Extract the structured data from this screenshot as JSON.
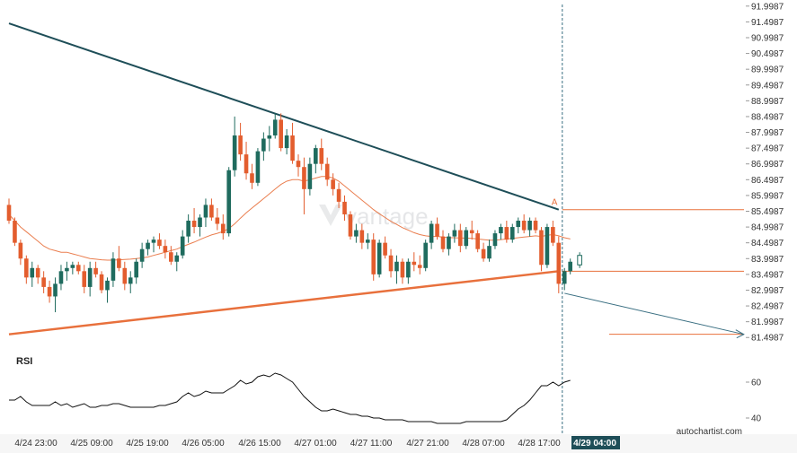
{
  "colors": {
    "bull": "#1f6b5e",
    "bear": "#e35d2e",
    "upper_trend": "#1e4e58",
    "lower_trend": "#e8703c",
    "ma": "#e8703c",
    "rsi_line": "#111111",
    "vline": "#3a6f82",
    "projection": "#3a6f82",
    "xaxis_highlight": "#1e4e58"
  },
  "chart_data": {
    "type": "candlestick",
    "yticks": [
      "91.9987",
      "91.4987",
      "90.9987",
      "90.4987",
      "89.9987",
      "89.4987",
      "88.9987",
      "88.4987",
      "87.9987",
      "87.4987",
      "86.9987",
      "86.4987",
      "85.9987",
      "85.4987",
      "84.9987",
      "84.4987",
      "83.9987",
      "83.4987",
      "82.9987",
      "82.4987",
      "81.9987",
      "81.4987"
    ],
    "ylim": [
      81.25,
      92.05
    ],
    "xticks": [
      "4/24 23:00",
      "4/25 09:00",
      "4/25 19:00",
      "4/26 05:00",
      "4/26 15:00",
      "4/27 01:00",
      "4/27 11:00",
      "4/27 21:00",
      "4/28 07:00",
      "4/28 17:00",
      "4/29 04:00"
    ],
    "highlight_xtick": "4/29 04:00",
    "candles": [
      [
        85.7,
        85.9,
        85.1,
        85.2
      ],
      [
        85.2,
        85.3,
        84.4,
        84.5
      ],
      [
        84.5,
        84.6,
        83.8,
        84.0
      ],
      [
        84.0,
        84.1,
        83.2,
        83.4
      ],
      [
        83.4,
        83.9,
        83.1,
        83.7
      ],
      [
        83.7,
        83.8,
        83.2,
        83.4
      ],
      [
        83.4,
        83.6,
        82.9,
        83.1
      ],
      [
        83.1,
        83.3,
        82.6,
        82.8
      ],
      [
        82.8,
        83.4,
        82.3,
        83.2
      ],
      [
        83.2,
        83.8,
        83.0,
        83.6
      ],
      [
        83.6,
        83.9,
        83.3,
        83.7
      ],
      [
        83.7,
        83.9,
        83.5,
        83.8
      ],
      [
        83.8,
        83.9,
        83.5,
        83.6
      ],
      [
        83.6,
        83.8,
        82.9,
        83.1
      ],
      [
        83.1,
        83.9,
        82.8,
        83.7
      ],
      [
        83.7,
        83.9,
        83.4,
        83.5
      ],
      [
        83.5,
        83.6,
        82.9,
        83.0
      ],
      [
        83.0,
        83.4,
        82.6,
        83.3
      ],
      [
        83.3,
        84.2,
        83.1,
        84.0
      ],
      [
        84.0,
        84.4,
        83.6,
        83.7
      ],
      [
        83.7,
        83.9,
        83.0,
        83.2
      ],
      [
        83.2,
        83.6,
        82.9,
        83.4
      ],
      [
        83.4,
        84.0,
        83.2,
        83.9
      ],
      [
        83.9,
        84.5,
        83.7,
        84.3
      ],
      [
        84.3,
        84.6,
        84.1,
        84.5
      ],
      [
        84.5,
        84.7,
        84.2,
        84.6
      ],
      [
        84.6,
        84.8,
        84.3,
        84.4
      ],
      [
        84.4,
        84.6,
        84.0,
        84.2
      ],
      [
        84.2,
        84.4,
        83.8,
        83.9
      ],
      [
        83.9,
        84.2,
        83.6,
        84.1
      ],
      [
        84.1,
        84.9,
        84.0,
        84.7
      ],
      [
        84.7,
        85.4,
        84.5,
        85.2
      ],
      [
        85.2,
        85.6,
        84.8,
        85.0
      ],
      [
        85.0,
        85.4,
        84.7,
        85.3
      ],
      [
        85.3,
        85.9,
        85.0,
        85.7
      ],
      [
        85.7,
        85.9,
        85.2,
        85.3
      ],
      [
        85.3,
        85.6,
        84.9,
        85.1
      ],
      [
        85.1,
        85.4,
        84.6,
        84.8
      ],
      [
        84.8,
        86.9,
        84.7,
        86.8
      ],
      [
        86.8,
        88.5,
        86.6,
        87.9
      ],
      [
        87.9,
        88.3,
        87.1,
        87.3
      ],
      [
        87.3,
        87.7,
        86.5,
        86.7
      ],
      [
        86.7,
        87.0,
        86.2,
        86.4
      ],
      [
        86.4,
        87.5,
        86.3,
        87.4
      ],
      [
        87.4,
        88.0,
        87.1,
        87.8
      ],
      [
        87.8,
        88.2,
        87.4,
        87.9
      ],
      [
        87.9,
        88.6,
        87.8,
        88.4
      ],
      [
        88.4,
        88.6,
        87.4,
        87.5
      ],
      [
        87.5,
        88.1,
        87.3,
        87.9
      ],
      [
        87.9,
        88.3,
        87.0,
        87.1
      ],
      [
        87.1,
        87.3,
        86.6,
        86.9
      ],
      [
        86.9,
        87.2,
        85.4,
        86.2
      ],
      [
        86.2,
        87.2,
        86.0,
        87.0
      ],
      [
        87.0,
        87.6,
        86.7,
        87.5
      ],
      [
        87.5,
        87.8,
        86.8,
        87.0
      ],
      [
        87.0,
        87.2,
        86.3,
        86.5
      ],
      [
        86.5,
        86.7,
        86.0,
        86.2
      ],
      [
        86.2,
        86.4,
        85.6,
        85.8
      ],
      [
        85.8,
        86.0,
        85.2,
        85.4
      ],
      [
        85.4,
        85.5,
        84.6,
        84.7
      ],
      [
        84.7,
        85.1,
        84.5,
        84.9
      ],
      [
        84.9,
        85.1,
        84.3,
        84.5
      ],
      [
        84.5,
        84.8,
        84.3,
        84.6
      ],
      [
        84.6,
        84.8,
        83.3,
        83.5
      ],
      [
        83.5,
        84.6,
        83.4,
        84.5
      ],
      [
        84.5,
        84.7,
        84.0,
        84.1
      ],
      [
        84.1,
        84.3,
        83.4,
        83.6
      ],
      [
        83.6,
        84.1,
        83.2,
        83.9
      ],
      [
        83.9,
        84.0,
        83.2,
        83.4
      ],
      [
        83.4,
        84.0,
        83.2,
        83.9
      ],
      [
        83.9,
        84.2,
        83.6,
        83.8
      ],
      [
        83.8,
        84.1,
        83.5,
        83.7
      ],
      [
        83.7,
        84.6,
        83.6,
        84.5
      ],
      [
        84.5,
        85.2,
        84.3,
        85.1
      ],
      [
        85.1,
        85.3,
        84.6,
        84.7
      ],
      [
        84.7,
        84.9,
        84.2,
        84.3
      ],
      [
        84.3,
        84.8,
        84.1,
        84.7
      ],
      [
        84.7,
        85.1,
        84.5,
        84.9
      ],
      [
        84.9,
        85.1,
        84.2,
        84.4
      ],
      [
        84.4,
        85.0,
        84.3,
        84.9
      ],
      [
        84.9,
        85.2,
        84.6,
        84.8
      ],
      [
        84.8,
        84.9,
        84.2,
        84.3
      ],
      [
        84.3,
        84.5,
        83.9,
        84.0
      ],
      [
        84.0,
        84.6,
        83.9,
        84.4
      ],
      [
        84.4,
        84.9,
        84.3,
        84.8
      ],
      [
        84.8,
        85.1,
        84.6,
        85.0
      ],
      [
        85.0,
        85.2,
        84.5,
        84.6
      ],
      [
        84.6,
        85.1,
        84.5,
        85.0
      ],
      [
        85.0,
        85.3,
        84.8,
        85.2
      ],
      [
        85.2,
        85.4,
        84.8,
        84.9
      ],
      [
        84.9,
        85.3,
        84.7,
        85.2
      ],
      [
        85.2,
        85.3,
        84.8,
        84.9
      ],
      [
        84.9,
        85.0,
        83.6,
        83.8
      ],
      [
        83.8,
        85.1,
        83.7,
        85.0
      ],
      [
        85.0,
        85.2,
        84.4,
        84.5
      ],
      [
        84.5,
        84.7,
        82.9,
        83.2
      ],
      [
        83.2,
        83.7,
        83.0,
        83.6
      ],
      [
        83.6,
        84.0,
        83.5,
        83.9
      ]
    ],
    "ma": [
      85.4,
      85.2,
      85.0,
      84.85,
      84.7,
      84.55,
      84.4,
      84.3,
      84.25,
      84.2,
      84.2,
      84.15,
      84.1,
      84.05,
      84.0,
      83.98,
      83.96,
      83.95,
      83.95,
      83.96,
      83.97,
      83.98,
      84.0,
      84.02,
      84.05,
      84.1,
      84.15,
      84.2,
      84.25,
      84.3,
      84.38,
      84.45,
      84.52,
      84.6,
      84.68,
      84.75,
      84.8,
      84.86,
      84.95,
      85.1,
      85.28,
      85.45,
      85.6,
      85.75,
      85.9,
      86.05,
      86.2,
      86.35,
      86.45,
      86.5,
      86.5,
      86.45,
      86.5,
      86.55,
      86.6,
      86.6,
      86.55,
      86.45,
      86.3,
      86.15,
      86.0,
      85.85,
      85.7,
      85.55,
      85.42,
      85.3,
      85.18,
      85.08,
      84.98,
      84.9,
      84.82,
      84.76,
      84.72,
      84.7,
      84.7,
      84.68,
      84.66,
      84.66,
      84.65,
      84.65,
      84.64,
      84.62,
      84.6,
      84.58,
      84.58,
      84.6,
      84.62,
      84.64,
      84.66,
      84.68,
      84.7,
      84.72,
      84.7,
      84.74,
      84.76,
      84.72,
      84.66,
      84.62
    ],
    "upper_trendline": {
      "from": [
        0,
        91.45
      ],
      "to": [
        95,
        85.55
      ]
    },
    "lower_trendline": {
      "from": [
        0,
        81.6
      ],
      "to": [
        95,
        83.6
      ]
    },
    "vertical_marker_index": 95,
    "label_a": "A",
    "point_a_level": 85.55,
    "breakout_level": 83.6,
    "target_level": 81.6,
    "projection": {
      "from": [
        96,
        82.9
      ],
      "to": [
        120,
        81.6
      ]
    },
    "rsi": {
      "title": "RSI",
      "yticks": [
        "60",
        "40"
      ],
      "ylim": [
        33,
        72
      ],
      "values": [
        50,
        50,
        52,
        49,
        47,
        47,
        47,
        47,
        49,
        47,
        48,
        46,
        47,
        48,
        46,
        46,
        47,
        47,
        48,
        48,
        47,
        46,
        46,
        46,
        46,
        46,
        47,
        47,
        48,
        49,
        52,
        54,
        52,
        53,
        55,
        54,
        54,
        54,
        56,
        58,
        61,
        59,
        60,
        63,
        64,
        63,
        65,
        64,
        62,
        60,
        56,
        52,
        49,
        46,
        44,
        44,
        45,
        44,
        43,
        42,
        42,
        41,
        41,
        40,
        40,
        39,
        39,
        39,
        39,
        38,
        38,
        38,
        38,
        38,
        37,
        37,
        37,
        37,
        37,
        38,
        38,
        38,
        38,
        38,
        38,
        38,
        39,
        42,
        45,
        47,
        50,
        54,
        58,
        58,
        60,
        58,
        60,
        61
      ]
    },
    "brand": "autochartist.com",
    "watermark": "vantage"
  }
}
